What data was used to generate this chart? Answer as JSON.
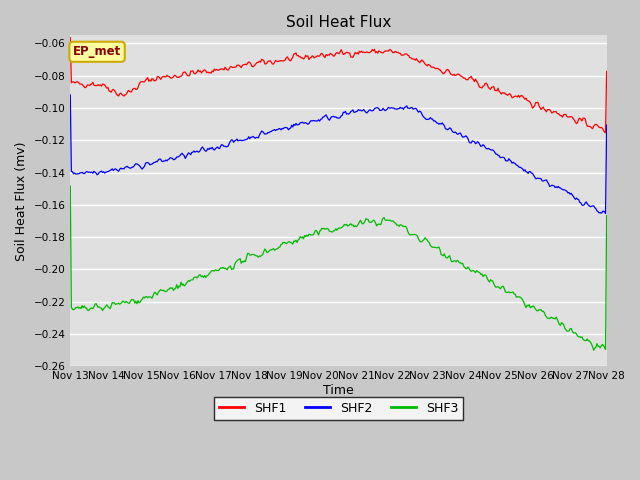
{
  "title": "Soil Heat Flux",
  "xlabel": "Time",
  "ylabel": "Soil Heat Flux (mv)",
  "ylim": [
    -0.26,
    -0.055
  ],
  "yticks": [
    -0.26,
    -0.24,
    -0.22,
    -0.2,
    -0.18,
    -0.16,
    -0.14,
    -0.12,
    -0.1,
    -0.08,
    -0.06
  ],
  "x_labels": [
    "Nov 13",
    "Nov 14",
    "Nov 15",
    "Nov 16",
    "Nov 17",
    "Nov 18",
    "Nov 19",
    "Nov 20",
    "Nov 21",
    "Nov 22",
    "Nov 23",
    "Nov 24",
    "Nov 25",
    "Nov 26",
    "Nov 27",
    "Nov 28"
  ],
  "colors": {
    "SHF1": "#ff0000",
    "SHF2": "#0000ff",
    "SHF3": "#00bb00"
  },
  "fig_bg": "#c8c8c8",
  "plot_bg": "#e0e0e0",
  "grid_color": "#ffffff",
  "annotation_text": "EP_met",
  "annotation_bg": "#ffffa0",
  "annotation_border": "#ccaa00",
  "title_fontsize": 11,
  "axis_label_fontsize": 9,
  "tick_fontsize": 7.5,
  "legend_fontsize": 9
}
